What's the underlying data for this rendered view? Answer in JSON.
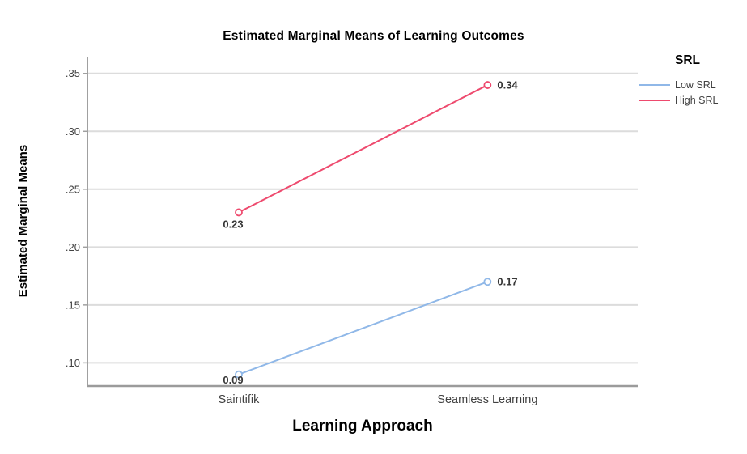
{
  "chart_data": {
    "type": "line",
    "title": "Estimated Marginal Means of Learning Outcomes",
    "xlabel": "Learning Approach",
    "ylabel": "Estimated Marginal Means",
    "categories": [
      "Saintifik",
      "Seamless Learning"
    ],
    "series": [
      {
        "name": "Low SRL",
        "color": "#90B8E8",
        "values": [
          0.09,
          0.17
        ],
        "point_labels": [
          "0.09",
          "0.17"
        ]
      },
      {
        "name": "High SRL",
        "color": "#EE4A6E",
        "values": [
          0.23,
          0.34
        ],
        "point_labels": [
          "0.23",
          "0.34"
        ]
      }
    ],
    "yticks": {
      "labels": [
        ".10",
        ".15",
        ".20",
        ".25",
        ".30",
        ".35"
      ],
      "values": [
        0.1,
        0.15,
        0.2,
        0.25,
        0.3,
        0.35
      ]
    },
    "ylim": [
      0.08,
      0.3645
    ],
    "grid": true,
    "legend": {
      "title": "SRL",
      "position": "right-outside",
      "items": [
        "Low SRL",
        "High SRL"
      ]
    },
    "colors": {
      "grid": "#DCDCDC",
      "axis": "#A0A0A0",
      "tick_text": "#414141",
      "point_label_text": "#363636"
    }
  }
}
